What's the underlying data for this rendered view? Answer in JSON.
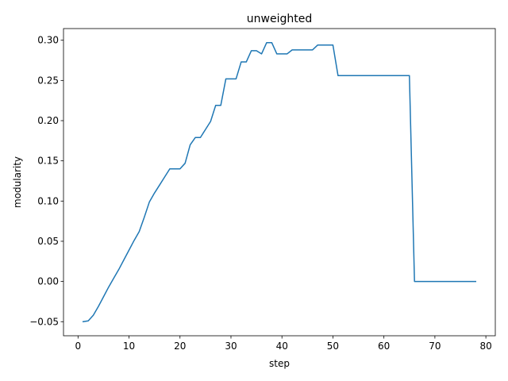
{
  "chart_data": {
    "type": "line",
    "title": "unweighted",
    "xlabel": "step",
    "ylabel": "modularity",
    "xlim": [
      -2.85,
      81.85
    ],
    "ylim": [
      -0.0675,
      0.3145
    ],
    "x_ticks": [
      0,
      10,
      20,
      30,
      40,
      50,
      60,
      70,
      80
    ],
    "x_tick_labels": [
      "0",
      "10",
      "20",
      "30",
      "40",
      "50",
      "60",
      "70",
      "80"
    ],
    "y_ticks": [
      -0.05,
      0.0,
      0.05,
      0.1,
      0.15,
      0.2,
      0.25,
      0.3
    ],
    "y_tick_labels": [
      "−0.05",
      "0.00",
      "0.05",
      "0.10",
      "0.15",
      "0.20",
      "0.25",
      "0.30"
    ],
    "grid": false,
    "legend": "none",
    "series": [
      {
        "color": "#1f77b4",
        "x": [
          1,
          2,
          3,
          4,
          5,
          6,
          7,
          8,
          9,
          10,
          11,
          12,
          13,
          14,
          15,
          16,
          17,
          18,
          19,
          20,
          21,
          22,
          23,
          24,
          25,
          26,
          27,
          28,
          29,
          30,
          31,
          32,
          33,
          34,
          35,
          36,
          37,
          38,
          39,
          40,
          41,
          42,
          43,
          44,
          45,
          46,
          47,
          48,
          49,
          50,
          51,
          52,
          53,
          54,
          55,
          56,
          57,
          58,
          59,
          60,
          61,
          62,
          63,
          64,
          65,
          66,
          67,
          68,
          69,
          70,
          71,
          72,
          73,
          74,
          75,
          76,
          77,
          78
        ],
        "y": [
          -0.05,
          -0.049,
          -0.042,
          -0.031,
          -0.019,
          -0.007,
          0.004,
          0.015,
          0.027,
          0.039,
          0.051,
          0.062,
          0.08,
          0.099,
          0.11,
          0.12,
          0.13,
          0.14,
          0.14,
          0.14,
          0.147,
          0.17,
          0.179,
          0.179,
          0.189,
          0.199,
          0.219,
          0.219,
          0.252,
          0.252,
          0.252,
          0.273,
          0.273,
          0.287,
          0.287,
          0.283,
          0.297,
          0.297,
          0.283,
          0.283,
          0.283,
          0.288,
          0.288,
          0.288,
          0.288,
          0.288,
          0.294,
          0.294,
          0.294,
          0.294,
          0.256,
          0.256,
          0.256,
          0.256,
          0.256,
          0.256,
          0.256,
          0.256,
          0.256,
          0.256,
          0.256,
          0.256,
          0.256,
          0.256,
          0.256,
          0.0,
          0.0,
          0.0,
          0.0,
          0.0,
          0.0,
          0.0,
          0.0,
          0.0,
          0.0,
          0.0,
          0.0,
          0.0
        ]
      }
    ]
  }
}
